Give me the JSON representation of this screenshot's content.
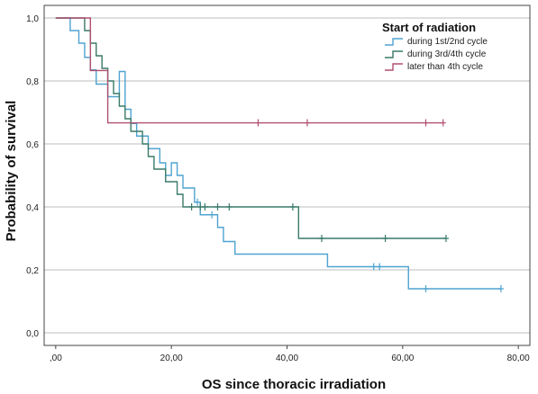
{
  "chart_data": {
    "type": "line",
    "step": true,
    "xlabel": "OS since thoracic irradiation",
    "ylabel": "Probability of survival",
    "xlim": [
      -2,
      82
    ],
    "ylim": [
      -0.04,
      1.04
    ],
    "x_ticks": [
      0,
      20,
      40,
      60,
      80
    ],
    "x_tick_labels": [
      ",00",
      "20,00",
      "40,00",
      "60,00",
      "80,00"
    ],
    "y_ticks": [
      0,
      0.2,
      0.4,
      0.6,
      0.8,
      1.0
    ],
    "y_tick_labels": [
      "0,0",
      "0,2",
      "0,4",
      "0,6",
      "0,8",
      "1,0"
    ],
    "grid": "horizontal",
    "legend_position": "top-right",
    "legend_title": "Start of radiation",
    "series": [
      {
        "name": "during 1st/2nd cycle",
        "color": "#4fa3d1",
        "steps": [
          [
            0,
            1.0
          ],
          [
            2.5,
            0.96
          ],
          [
            4,
            0.92
          ],
          [
            5,
            0.875
          ],
          [
            6,
            0.835
          ],
          [
            7,
            0.79
          ],
          [
            9,
            0.75
          ],
          [
            11,
            0.83
          ],
          [
            12,
            0.71
          ],
          [
            13,
            0.665
          ],
          [
            14,
            0.625
          ],
          [
            16,
            0.585
          ],
          [
            18,
            0.54
          ],
          [
            19,
            0.5
          ],
          [
            20,
            0.54
          ],
          [
            21,
            0.5
          ],
          [
            22,
            0.46
          ],
          [
            24,
            0.415
          ],
          [
            25,
            0.375
          ],
          [
            28,
            0.335
          ],
          [
            29,
            0.29
          ],
          [
            31,
            0.25
          ],
          [
            47,
            0.21
          ],
          [
            56,
            0.21
          ],
          [
            61,
            0.14
          ],
          [
            77,
            0.14
          ]
        ],
        "censored": [
          [
            24.5,
            0.415
          ],
          [
            27,
            0.375
          ],
          [
            55,
            0.21
          ],
          [
            56,
            0.21
          ],
          [
            64,
            0.14
          ],
          [
            77,
            0.14
          ]
        ]
      },
      {
        "name": "during 3rd/4th cycle",
        "color": "#3a7a68",
        "steps": [
          [
            0,
            1.0
          ],
          [
            5,
            0.96
          ],
          [
            6,
            0.92
          ],
          [
            7,
            0.88
          ],
          [
            8,
            0.84
          ],
          [
            9,
            0.8
          ],
          [
            10,
            0.76
          ],
          [
            11,
            0.72
          ],
          [
            12,
            0.68
          ],
          [
            13,
            0.64
          ],
          [
            15,
            0.6
          ],
          [
            16,
            0.56
          ],
          [
            17,
            0.52
          ],
          [
            19,
            0.48
          ],
          [
            21,
            0.44
          ],
          [
            22,
            0.4
          ],
          [
            42,
            0.3
          ],
          [
            67.5,
            0.3
          ]
        ],
        "censored": [
          [
            23.5,
            0.4
          ],
          [
            25,
            0.4
          ],
          [
            25.8,
            0.4
          ],
          [
            28,
            0.4
          ],
          [
            30,
            0.4
          ],
          [
            41,
            0.4
          ],
          [
            46,
            0.3
          ],
          [
            57,
            0.3
          ],
          [
            67.5,
            0.3
          ]
        ]
      },
      {
        "name": "later than 4th cycle",
        "color": "#b0506e",
        "steps": [
          [
            0,
            1.0
          ],
          [
            6,
            0.833
          ],
          [
            9,
            0.667
          ],
          [
            67,
            0.667
          ]
        ],
        "censored": [
          [
            35,
            0.667
          ],
          [
            43.5,
            0.667
          ],
          [
            64,
            0.667
          ],
          [
            67,
            0.667
          ]
        ]
      }
    ]
  }
}
